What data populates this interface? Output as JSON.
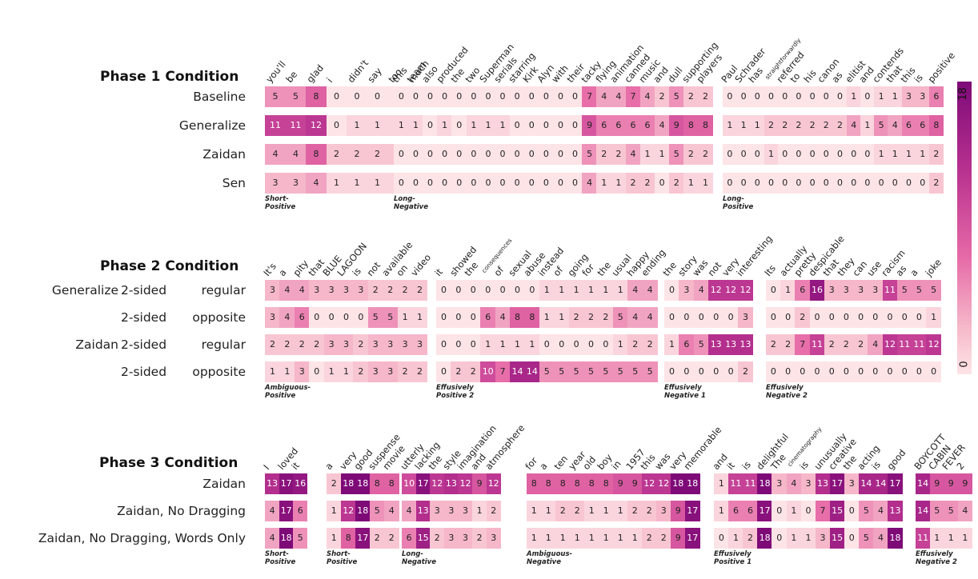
{
  "colors": {
    "min": "#fde4e7",
    "mid": "#e66aa7",
    "max": "#7e0a78"
  },
  "colorbar": {
    "min_label": "0",
    "max_label": "18",
    "min": 0,
    "max": 18
  },
  "chart_data": {
    "type": "heatmap",
    "title": "",
    "phases": [
      {
        "title": "Phase 1 Condition",
        "row_labels": [
          "Baseline",
          "Generalize",
          "Zaidan",
          "Sen"
        ],
        "blocks": [
          {
            "label": "Short-Positive",
            "words": [
              "you'll",
              "be",
              "glad",
              "i",
              "didn't",
              "say",
              "too",
              "much"
            ],
            "rows": [
              [
                5,
                5,
                8,
                0,
                0,
                0,
                0,
                0
              ],
              [
                11,
                11,
                12,
                0,
                1,
                1,
                1,
                1
              ],
              [
                4,
                4,
                8,
                2,
                2,
                2,
                2,
                2
              ],
              [
                3,
                3,
                4,
                1,
                1,
                1,
                1,
                1
              ]
            ]
          },
          {
            "label": "Long-Negative",
            "words": [
              "this",
              "team",
              "also",
              "produced",
              "the",
              "two",
              "Superman",
              "serials",
              "starring",
              "Kirk",
              "Alyn",
              "with",
              "their",
              "tacky",
              "flying",
              "animation",
              "canned",
              "music",
              "and",
              "dull",
              "supporting",
              "players"
            ],
            "rows": [
              [
                0,
                0,
                0,
                0,
                0,
                0,
                0,
                0,
                0,
                0,
                0,
                0,
                0,
                7,
                4,
                4,
                7,
                4,
                2,
                5,
                2,
                2
              ],
              [
                1,
                1,
                0,
                1,
                0,
                1,
                1,
                1,
                0,
                0,
                0,
                0,
                0,
                9,
                6,
                6,
                6,
                6,
                4,
                9,
                8,
                8
              ],
              [
                0,
                0,
                0,
                0,
                0,
                0,
                0,
                0,
                0,
                0,
                0,
                0,
                0,
                5,
                2,
                2,
                4,
                1,
                1,
                5,
                2,
                2
              ],
              [
                0,
                0,
                0,
                0,
                0,
                0,
                0,
                0,
                0,
                0,
                0,
                0,
                0,
                4,
                1,
                1,
                2,
                2,
                0,
                2,
                1,
                1
              ]
            ]
          },
          {
            "label": "Long-Positive",
            "words": [
              "Paul",
              "Schrader",
              "has",
              "straightforwardly",
              "referred",
              "to",
              "his",
              "canon",
              "as",
              "elitist",
              "and",
              "contends",
              "that",
              "this",
              "is",
              "positive"
            ],
            "rows": [
              [
                0,
                0,
                0,
                0,
                0,
                0,
                0,
                0,
                0,
                1,
                0,
                1,
                1,
                3,
                3,
                6
              ],
              [
                1,
                1,
                1,
                2,
                2,
                2,
                2,
                2,
                2,
                4,
                1,
                5,
                4,
                6,
                6,
                8
              ],
              [
                0,
                0,
                0,
                1,
                0,
                0,
                0,
                0,
                0,
                0,
                0,
                1,
                1,
                1,
                1,
                2
              ],
              [
                0,
                0,
                0,
                0,
                0,
                0,
                0,
                0,
                0,
                0,
                0,
                0,
                0,
                0,
                0,
                2
              ]
            ]
          }
        ]
      },
      {
        "title": "Phase 2 Condition",
        "row_labels": [
          "Generalize 2-sided     regular",
          "2-sided   opposite",
          "Zaidan 2-sided     regular",
          "2-sided   opposite"
        ],
        "row_parts": [
          [
            "Generalize",
            "2-sided",
            "regular"
          ],
          [
            "",
            "2-sided",
            "opposite"
          ],
          [
            "Zaidan",
            "2-sided",
            "regular"
          ],
          [
            "",
            "2-sided",
            "opposite"
          ]
        ],
        "blocks": [
          {
            "label": "Ambiguous-Positive",
            "words": [
              "It's",
              "a",
              "pity",
              "that",
              "BLUE",
              "LAGOON",
              "is",
              "not",
              "available",
              "on",
              "video"
            ],
            "rows": [
              [
                3,
                4,
                4,
                3,
                3,
                3,
                3,
                2,
                2,
                2,
                2
              ],
              [
                3,
                4,
                6,
                0,
                0,
                0,
                0,
                5,
                5,
                1,
                1
              ],
              [
                2,
                2,
                2,
                2,
                3,
                3,
                2,
                3,
                3,
                3,
                3
              ],
              [
                1,
                1,
                3,
                0,
                1,
                1,
                2,
                3,
                3,
                2,
                2
              ]
            ]
          },
          {
            "label": "Effusively Positive 2",
            "words": [
              "it",
              "showed",
              "the",
              "consequences",
              "of",
              "sexual",
              "abuse",
              "instead",
              "of",
              "going",
              "for",
              "the",
              "usual",
              "happy",
              "ending"
            ],
            "rows": [
              [
                0,
                0,
                0,
                0,
                0,
                0,
                0,
                1,
                1,
                1,
                1,
                1,
                1,
                4,
                4
              ],
              [
                0,
                0,
                0,
                6,
                4,
                8,
                8,
                1,
                1,
                2,
                2,
                2,
                5,
                4,
                4
              ],
              [
                0,
                0,
                0,
                1,
                1,
                1,
                1,
                0,
                0,
                0,
                0,
                0,
                1,
                2,
                2
              ],
              [
                0,
                2,
                2,
                10,
                7,
                14,
                14,
                5,
                5,
                5,
                5,
                5,
                5,
                5,
                5
              ]
            ]
          },
          {
            "label": "Effusively Negative 1",
            "words": [
              "the",
              "story",
              "was",
              "not",
              "very",
              "interesting"
            ],
            "rows": [
              [
                0,
                3,
                4,
                12,
                12,
                12
              ],
              [
                0,
                0,
                0,
                0,
                0,
                3
              ],
              [
                1,
                6,
                5,
                13,
                13,
                13
              ],
              [
                0,
                0,
                0,
                0,
                0,
                2
              ]
            ]
          },
          {
            "label": "Effusively Negative 2",
            "words": [
              "Its",
              "actually",
              "pretty",
              "despicable",
              "that",
              "they",
              "can",
              "use",
              "racism",
              "as",
              "a",
              "joke"
            ],
            "rows": [
              [
                0,
                1,
                6,
                16,
                3,
                3,
                3,
                3,
                11,
                5,
                5,
                5
              ],
              [
                0,
                0,
                2,
                0,
                0,
                0,
                0,
                0,
                0,
                0,
                0,
                1
              ],
              [
                2,
                2,
                7,
                11,
                2,
                2,
                2,
                4,
                12,
                11,
                11,
                12
              ],
              [
                0,
                0,
                0,
                0,
                0,
                0,
                0,
                0,
                0,
                0,
                0,
                0
              ]
            ]
          }
        ]
      },
      {
        "title": "Phase 3 Condition",
        "row_labels": [
          "Zaidan",
          "Zaidan, No Dragging",
          "Zaidan, No Dragging, Words Only"
        ],
        "blocks": [
          {
            "label": "Short-Positive",
            "words": [
              "I",
              "loved",
              "it"
            ],
            "rows": [
              [
                13,
                17,
                16
              ],
              [
                4,
                17,
                6
              ],
              [
                4,
                18,
                5
              ]
            ]
          },
          {
            "label": "Short-Positive",
            "words": [
              "a",
              "very",
              "good",
              "suspense",
              "movie"
            ],
            "rows": [
              [
                2,
                18,
                18,
                8,
                8
              ],
              [
                1,
                12,
                18,
                5,
                4
              ],
              [
                1,
                8,
                17,
                2,
                2
              ]
            ]
          },
          {
            "label": "Long-Negative",
            "words": [
              "utterly",
              "lacking",
              "the",
              "style",
              "imagination",
              "and",
              "atmosphere"
            ],
            "rows": [
              [
                10,
                17,
                12,
                13,
                12,
                9,
                12
              ],
              [
                4,
                13,
                3,
                3,
                3,
                1,
                2
              ],
              [
                6,
                15,
                2,
                3,
                3,
                2,
                3
              ]
            ]
          },
          {
            "label": "Ambiguous-Negative",
            "words": [
              "for",
              "a",
              "ten",
              "year",
              "old",
              "boy",
              "in",
              "1957",
              "this",
              "was",
              "very",
              "memorable"
            ],
            "rows": [
              [
                8,
                8,
                8,
                8,
                8,
                8,
                9,
                9,
                12,
                12,
                18,
                18
              ],
              [
                1,
                1,
                2,
                2,
                1,
                1,
                1,
                2,
                2,
                3,
                9,
                17
              ],
              [
                1,
                1,
                1,
                1,
                1,
                1,
                1,
                1,
                2,
                2,
                9,
                17
              ]
            ]
          },
          {
            "label": "Effusively Positive 1",
            "words": [
              "and",
              "it",
              "is",
              "delightful",
              "The",
              "cinematography",
              "is",
              "unusually",
              "creative",
              "the",
              "acting",
              "is",
              "good"
            ],
            "rows": [
              [
                1,
                11,
                11,
                18,
                3,
                4,
                3,
                13,
                17,
                3,
                14,
                14,
                17
              ],
              [
                1,
                6,
                6,
                17,
                0,
                1,
                0,
                7,
                15,
                0,
                5,
                4,
                13
              ],
              [
                0,
                1,
                2,
                18,
                0,
                1,
                1,
                3,
                15,
                0,
                5,
                4,
                18
              ]
            ]
          },
          {
            "label": "Effusively Negative 2",
            "words": [
              "BOYCOTT",
              "CABIN",
              "FEVER",
              "2"
            ],
            "rows": [
              [
                14,
                9,
                9,
                9
              ],
              [
                14,
                5,
                5,
                4
              ],
              [
                11,
                1,
                1,
                1
              ]
            ]
          }
        ]
      }
    ]
  }
}
